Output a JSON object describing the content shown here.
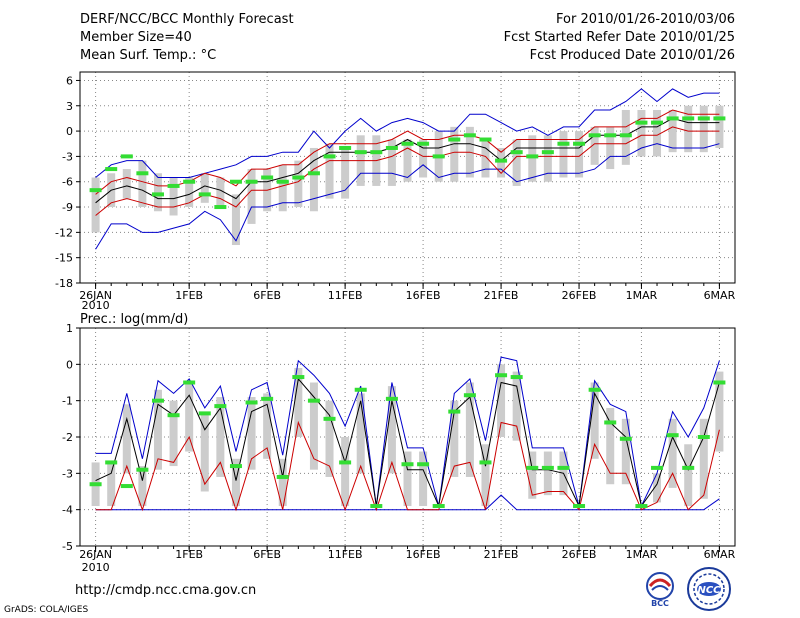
{
  "header": {
    "title": "DERF/NCC/BCC Monthly Forecast",
    "member_size": "Member Size=40",
    "variable": "Mean Surf. Temp.: °C",
    "valid_range": "For 2010/01/26-2010/03/06",
    "start_date": "Fcst Started Refer Date 2010/01/25",
    "produced_date": "Fcst Produced Date 2010/01/26"
  },
  "footer": {
    "url": "http://cmdp.ncc.cma.gov.cn",
    "grads": "GrADS: COLA/IGES",
    "logo_bcc": "BCC",
    "logo_ncc": "NCC"
  },
  "colors": {
    "envelope": "#0000cc",
    "spread": "#cc0000",
    "mean": "#000000",
    "observed": "#33dd33",
    "box": "#cccccc",
    "grid": "#888888"
  },
  "chart_data": [
    {
      "type": "line",
      "title": "Mean Surf. Temp.: °C",
      "x_tick_labels": [
        "26JAN",
        "1FEB",
        "6FEB",
        "11FEB",
        "16FEB",
        "21FEB",
        "26FEB",
        "1MAR",
        "6MAR"
      ],
      "x_tick_days": [
        1,
        7,
        12,
        17,
        22,
        27,
        32,
        36,
        41
      ],
      "year_label": "2010",
      "x_days": [
        1,
        2,
        3,
        4,
        5,
        6,
        7,
        8,
        9,
        10,
        11,
        12,
        13,
        14,
        15,
        16,
        17,
        18,
        19,
        20,
        21,
        22,
        23,
        24,
        25,
        26,
        27,
        28,
        29,
        30,
        31,
        32,
        33,
        34,
        35,
        36,
        37,
        38,
        39,
        40,
        41
      ],
      "ylim": [
        -18,
        7
      ],
      "y_ticks": [
        -18,
        -15,
        -12,
        -9,
        -6,
        -3,
        0,
        3,
        6
      ],
      "series": [
        {
          "name": "ensemble max",
          "role": "upper_envelope",
          "values": [
            -5.5,
            -4,
            -3.5,
            -3.5,
            -5.5,
            -5.5,
            -5.5,
            -5,
            -4.5,
            -4,
            -3,
            -3,
            -2.5,
            -2.5,
            0,
            -2,
            0,
            1.5,
            0,
            1,
            1.5,
            1,
            0,
            0,
            2,
            2,
            1,
            0,
            0.5,
            -0.5,
            0.5,
            0.5,
            2.5,
            2.5,
            3.5,
            5,
            3.5,
            5,
            4,
            4.5,
            4.5
          ]
        },
        {
          "name": "ensemble min",
          "role": "lower_envelope",
          "values": [
            -14,
            -11,
            -11,
            -12,
            -12,
            -11.5,
            -11,
            -9.5,
            -10.5,
            -13,
            -9,
            -9,
            -8.5,
            -8.5,
            -8,
            -7.5,
            -7,
            -5,
            -5,
            -5,
            -5.5,
            -4,
            -5.5,
            -5,
            -5,
            -4.5,
            -4.5,
            -6,
            -5.5,
            -5,
            -5,
            -5,
            -4.5,
            -3,
            -3,
            -2,
            -1.5,
            -2,
            -2,
            -2,
            -1.5
          ]
        },
        {
          "name": "ensemble mean + spread",
          "role": "upper_spread",
          "values": [
            -7.5,
            -6,
            -5.5,
            -6,
            -6.5,
            -6.5,
            -6,
            -5,
            -5.5,
            -6.5,
            -4.5,
            -4.5,
            -4,
            -4,
            -2.5,
            -1.5,
            -1.5,
            -1.5,
            -1.5,
            -1,
            0,
            -1,
            -1,
            -0.5,
            -0.5,
            -1,
            -2.5,
            -1,
            -1,
            -1,
            -1,
            -1,
            0.5,
            0.5,
            0.5,
            1.5,
            1.5,
            2.5,
            2,
            2,
            2
          ]
        },
        {
          "name": "ensemble mean",
          "role": "mean",
          "values": [
            -8.5,
            -7,
            -6.5,
            -7,
            -8,
            -8,
            -7.5,
            -6.5,
            -7,
            -8,
            -6,
            -6,
            -5.5,
            -5,
            -3.5,
            -2.5,
            -2.5,
            -2.5,
            -2.5,
            -2,
            -1,
            -2,
            -2,
            -1.5,
            -1.5,
            -2,
            -3.5,
            -2,
            -2,
            -2,
            -2,
            -2,
            -0.5,
            -0.5,
            -0.5,
            0.5,
            0.5,
            1.5,
            1,
            1,
            1
          ]
        },
        {
          "name": "ensemble mean - spread",
          "role": "lower_spread",
          "values": [
            -10,
            -8.5,
            -8,
            -8.5,
            -9,
            -9,
            -8.5,
            -7.5,
            -8,
            -9,
            -7,
            -7,
            -6.5,
            -6,
            -4.5,
            -3.5,
            -3.5,
            -3.5,
            -3.5,
            -3,
            -2,
            -3,
            -3,
            -2.5,
            -2.5,
            -3,
            -5,
            -3,
            -3,
            -3,
            -3,
            -3,
            -1.5,
            -1.5,
            -1.5,
            -0.5,
            -0.5,
            0.5,
            0,
            0,
            0
          ]
        },
        {
          "name": "observed",
          "role": "observed",
          "values": [
            -7,
            -4.5,
            -3,
            -5,
            -7.5,
            -6.5,
            -6,
            -7.5,
            -9,
            -6,
            -6,
            -5.5,
            -6,
            -5.5,
            -5,
            -3,
            -2,
            -2.5,
            -2.5,
            -2,
            -1.5,
            -1.5,
            -3,
            -1,
            -0.5,
            -1,
            -3.5,
            -2.5,
            -3,
            -2.5,
            -1.5,
            -1.5,
            -0.5,
            -0.5,
            -0.5,
            1,
            1,
            1.5,
            1.5,
            1.5,
            1.5
          ]
        },
        {
          "name": "box upper",
          "role": "box_hi",
          "values": [
            -5.5,
            -5,
            -4.5,
            -3.5,
            -5,
            -5.5,
            -5.5,
            -5,
            -5.5,
            -7.5,
            -4.5,
            -4.5,
            -4,
            -3.5,
            -2,
            -1.5,
            -2,
            -0.5,
            -0.5,
            -1,
            -1,
            -1,
            0,
            0.5,
            0.5,
            -1,
            -2,
            -1,
            -0.5,
            -0.5,
            0,
            0,
            0.5,
            0.5,
            2.5,
            2.5,
            2.5,
            2.5,
            3,
            3,
            3
          ]
        },
        {
          "name": "box lower",
          "role": "box_lo",
          "values": [
            -12,
            -9,
            -8,
            -9,
            -9.5,
            -10,
            -9,
            -8.5,
            -9,
            -13.5,
            -11,
            -9.5,
            -9.5,
            -9,
            -9.5,
            -8,
            -8,
            -6.5,
            -6.5,
            -6.5,
            -6,
            -5.5,
            -6,
            -6,
            -5.5,
            -5.5,
            -5.5,
            -6.5,
            -6,
            -6,
            -5.5,
            -5.5,
            -4,
            -4.5,
            -4,
            -3,
            -3,
            -2.5,
            -2.5,
            -2.5,
            -2
          ]
        }
      ]
    },
    {
      "type": "line",
      "title": "Prec.: log(mm/d)",
      "x_tick_labels": [
        "26JAN",
        "1FEB",
        "6FEB",
        "11FEB",
        "16FEB",
        "21FEB",
        "26FEB",
        "1MAR",
        "6MAR"
      ],
      "x_tick_days": [
        1,
        7,
        12,
        17,
        22,
        27,
        32,
        36,
        41
      ],
      "year_label": "2010",
      "x_days": [
        1,
        2,
        3,
        4,
        5,
        6,
        7,
        8,
        9,
        10,
        11,
        12,
        13,
        14,
        15,
        16,
        17,
        18,
        19,
        20,
        21,
        22,
        23,
        24,
        25,
        26,
        27,
        28,
        29,
        30,
        31,
        32,
        33,
        34,
        35,
        36,
        37,
        38,
        39,
        40,
        41
      ],
      "ylim": [
        -5,
        1
      ],
      "y_ticks": [
        -5,
        -4,
        -3,
        -2,
        -1,
        0,
        1
      ],
      "series": [
        {
          "name": "ensemble max",
          "role": "upper_envelope",
          "values": [
            -2.45,
            -2.45,
            -0.8,
            -2.6,
            -0.45,
            -0.8,
            -0.4,
            -1.2,
            -0.6,
            -2.4,
            -0.7,
            -0.5,
            -2.5,
            0.1,
            -0.3,
            -0.8,
            -1.7,
            -0.6,
            -3.9,
            -0.5,
            -2.3,
            -2.3,
            -3.9,
            -0.8,
            -0.4,
            -2.1,
            0.2,
            0.1,
            -2.3,
            -2.3,
            -2.3,
            -3.9,
            -0.45,
            -1.1,
            -1.3,
            -3.9,
            -3.0,
            -1.3,
            -2.0,
            -1.2,
            0.1
          ]
        },
        {
          "name": "ensemble min",
          "role": "lower_envelope",
          "values": [
            -4.0,
            -4.0,
            -4.0,
            -4.0,
            -4.0,
            -4.0,
            -4.0,
            -4.0,
            -4.0,
            -4.0,
            -4.0,
            -4.0,
            -4.0,
            -4.0,
            -4.0,
            -4.0,
            -4.0,
            -4.0,
            -4.0,
            -4.0,
            -4.0,
            -4.0,
            -4.0,
            -4.0,
            -4.0,
            -4.0,
            -3.6,
            -4.0,
            -4.0,
            -4.0,
            -4.0,
            -4.0,
            -4.0,
            -4.0,
            -4.0,
            -4.0,
            -4.0,
            -4.0,
            -4.0,
            -4.0,
            -3.7
          ]
        },
        {
          "name": "ensemble mean",
          "role": "mean",
          "values": [
            -3.2,
            -3.0,
            -1.5,
            -3.2,
            -1.1,
            -1.4,
            -0.85,
            -1.8,
            -1.2,
            -3.2,
            -1.3,
            -1.1,
            -3.1,
            -0.4,
            -0.9,
            -1.4,
            -2.7,
            -1.0,
            -3.9,
            -1.0,
            -2.9,
            -2.9,
            -3.9,
            -1.3,
            -0.9,
            -2.8,
            -0.5,
            -0.6,
            -2.9,
            -2.9,
            -3.0,
            -3.9,
            -0.8,
            -1.6,
            -2.0,
            -3.9,
            -3.3,
            -2.0,
            -2.9,
            -2.0,
            -0.5
          ]
        },
        {
          "name": "lower percentile",
          "role": "lower_spread",
          "values": [
            -4.0,
            -4.0,
            -2.8,
            -4.0,
            -2.6,
            -2.7,
            -2.0,
            -3.3,
            -2.7,
            -4.0,
            -2.6,
            -2.3,
            -4.0,
            -1.6,
            -2.6,
            -2.8,
            -4.0,
            -2.8,
            -4.0,
            -2.7,
            -4.0,
            -4.0,
            -4.0,
            -2.8,
            -2.7,
            -4.0,
            -1.6,
            -1.7,
            -3.6,
            -3.5,
            -3.5,
            -4.0,
            -2.2,
            -3.0,
            -3.0,
            -4.0,
            -3.8,
            -3.0,
            -4.0,
            -3.6,
            -1.8
          ]
        },
        {
          "name": "observed",
          "role": "observed",
          "values": [
            -3.3,
            -2.7,
            -3.35,
            -2.9,
            -1.0,
            -1.4,
            -0.5,
            -1.35,
            -1.15,
            -2.8,
            -1.05,
            -0.95,
            -3.1,
            -0.35,
            -1.0,
            -1.5,
            -2.7,
            -0.7,
            -3.9,
            -0.95,
            -2.75,
            -2.75,
            -3.9,
            -1.3,
            -0.85,
            -2.7,
            -0.3,
            -0.35,
            -2.85,
            -2.85,
            -2.85,
            -3.9,
            -0.7,
            -1.6,
            -2.05,
            -3.9,
            -2.85,
            -1.95,
            -2.85,
            -2.0,
            -0.5
          ]
        },
        {
          "name": "box upper",
          "role": "box_hi",
          "values": [
            -2.7,
            -2.7,
            -1.1,
            -2.8,
            -0.7,
            -1.0,
            -0.5,
            -1.3,
            -0.9,
            -2.6,
            -0.9,
            -0.8,
            -2.6,
            -0.1,
            -0.5,
            -1.0,
            -2.0,
            -0.8,
            -3.9,
            -0.6,
            -2.4,
            -2.4,
            -3.9,
            -1.0,
            -0.5,
            -2.2,
            0.0,
            -0.2,
            -2.4,
            -2.4,
            -2.4,
            -3.9,
            -0.5,
            -1.2,
            -1.5,
            -3.9,
            -3.0,
            -1.5,
            -2.2,
            -1.5,
            -0.2
          ]
        },
        {
          "name": "box lower",
          "role": "box_lo",
          "values": [
            -3.9,
            -3.9,
            -3.0,
            -3.9,
            -2.9,
            -2.8,
            -2.4,
            -3.5,
            -3.1,
            -3.9,
            -2.9,
            -2.6,
            -3.9,
            -2.0,
            -2.9,
            -3.1,
            -3.9,
            -3.0,
            -3.9,
            -3.0,
            -3.9,
            -3.9,
            -3.9,
            -3.1,
            -3.1,
            -3.9,
            -2.0,
            -2.1,
            -3.7,
            -3.6,
            -3.6,
            -3.9,
            -2.6,
            -3.3,
            -3.3,
            -3.9,
            -3.8,
            -3.4,
            -3.9,
            -3.7,
            -2.4
          ]
        }
      ]
    }
  ]
}
